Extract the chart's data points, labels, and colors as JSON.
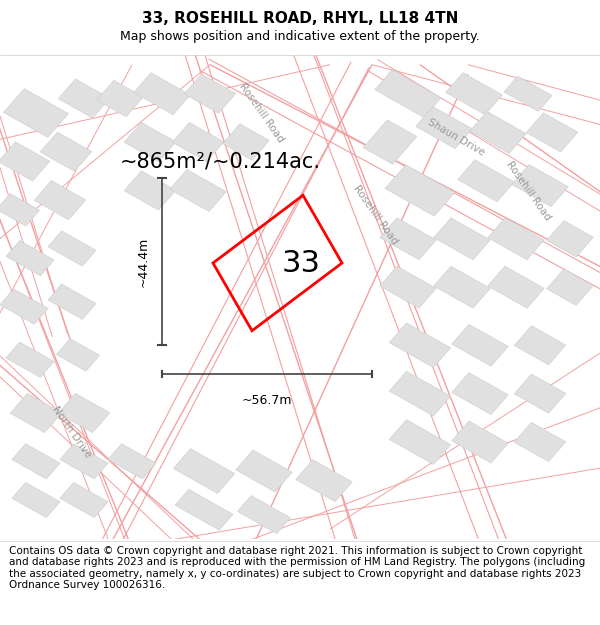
{
  "title": "33, ROSEHILL ROAD, RHYL, LL18 4TN",
  "subtitle": "Map shows position and indicative extent of the property.",
  "footer_text": "Contains OS data © Crown copyright and database right 2021. This information is subject to Crown copyright and database rights 2023 and is reproduced with the permission of HM Land Registry. The polygons (including the associated geometry, namely x, y co-ordinates) are subject to Crown copyright and database rights 2023 Ordnance Survey 100026316.",
  "plot_label": "33",
  "area_text": "~865m²/~0.214ac.",
  "dim_h_text": "~44.4m",
  "dim_w_text": "~56.7m",
  "red": "#ff0000",
  "dark_gray": "#555555",
  "road_color": "#f2a0a0",
  "road_lw": 0.8,
  "building_face": "#e0e0e0",
  "building_edge": "#cccccc",
  "street_label_color": "#999999",
  "title_fontsize": 11,
  "subtitle_fontsize": 9,
  "area_fontsize": 15,
  "label_fontsize": 22,
  "footer_fontsize": 7.5
}
